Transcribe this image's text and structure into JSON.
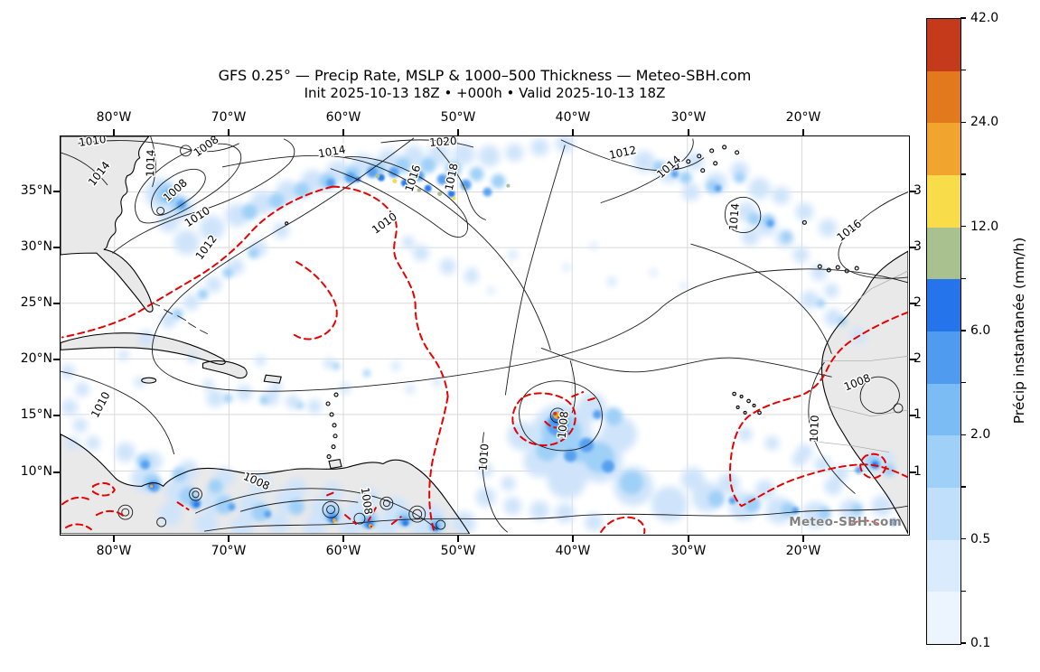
{
  "figure": {
    "title": "GFS 0.25° — Precip Rate, MSLP & 1000–500 Thickness — Meteo-SBH.com",
    "subtitle": "Init 2025-10-13 18Z • +000h • Valid 2025-10-13 18Z"
  },
  "map": {
    "watermark": "Meteo-SBH.com",
    "lon_labels": [
      "80°W",
      "70°W",
      "60°W",
      "50°W",
      "40°W",
      "30°W",
      "20°W"
    ],
    "lat_labels": [
      "35°N",
      "30°N",
      "25°N",
      "20°N",
      "15°N",
      "10°N"
    ],
    "lat_labels_right_clipped": [
      "3",
      "3",
      "2",
      "2",
      "1",
      "1"
    ],
    "contour_labels": [
      "1010",
      "1014",
      "1014",
      "1008",
      "1008",
      "1010",
      "1012",
      "1014",
      "1016",
      "1018",
      "1020",
      "1012",
      "1014",
      "1014",
      "1016",
      "1010",
      "1010",
      "1008",
      "1008",
      "1010",
      "1008",
      "1010",
      "1008"
    ],
    "colors": {
      "ocean": "#ffffff",
      "land": "#e9e9e9",
      "coastline": "#000000",
      "gridline": "#d9d9d9",
      "mslp_contour": "#1a1a1a",
      "thickness_contour": "#e60000"
    }
  },
  "colorbar": {
    "label": "Précip instantanée (mm/h)",
    "tick_labels_top_to_bottom": [
      "42.0",
      "24.0",
      "12.0",
      "6.0",
      "2.0",
      "0.5",
      "0.1"
    ],
    "segment_colors_bottom_to_top": [
      "#ecf5fd",
      "#d9ebfc",
      "#bfdffa",
      "#9fd0f7",
      "#7cbcf4",
      "#4f9bf0",
      "#2674ec",
      "#a9c08f",
      "#f8dc4a",
      "#f1a52f",
      "#e3791d",
      "#c43a1a"
    ]
  }
}
